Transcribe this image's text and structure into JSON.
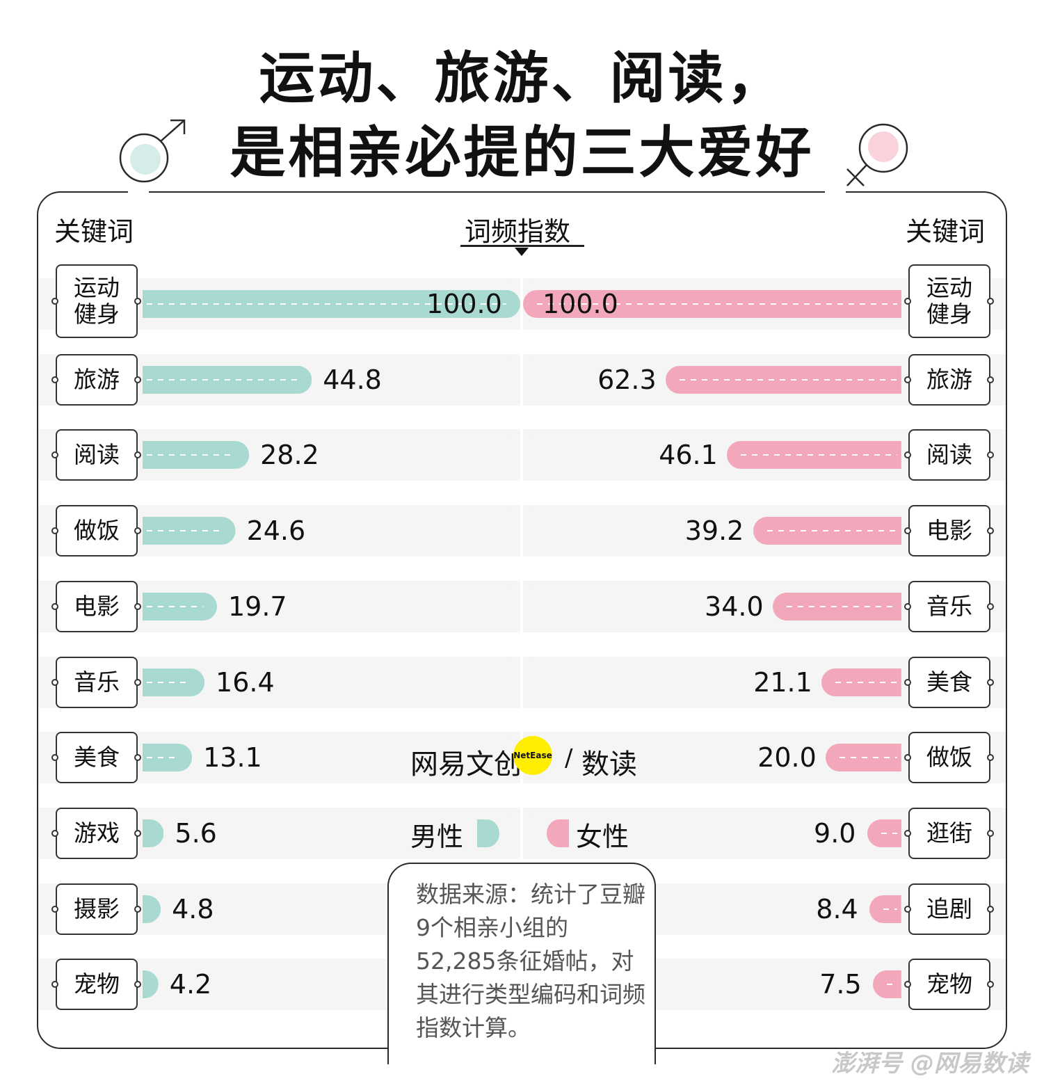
{
  "title_line1": "运动、旅游、阅读，",
  "title_line2": "是相亲必提的三大爱好",
  "header": {
    "left_col": "关键词",
    "center_col": "词频指数",
    "right_col": "关键词"
  },
  "legend": {
    "male": "男性",
    "female": "女性"
  },
  "brand": {
    "name": "网易文创",
    "badge": "NetEase",
    "slash": "/",
    "sub": "数读"
  },
  "note": "数据来源：统计了豆瓣9个相亲小组的52,285条征婚帖，对其进行类型编码和词频指数计算。",
  "watermark": "澎湃号 @网易数读",
  "colors": {
    "male": "#a8dad1",
    "female": "#f2a7bb",
    "male_symbol": "#d6ece8",
    "female_symbol": "#f9d2dc"
  },
  "chart_data": {
    "type": "bar",
    "title": "运动、旅游、阅读，是相亲必提的三大爱好",
    "value_label": "词频指数",
    "xlim": [
      0,
      100
    ],
    "series": [
      {
        "name": "男性",
        "categories": [
          "运动健身",
          "旅游",
          "阅读",
          "做饭",
          "电影",
          "音乐",
          "美食",
          "游戏",
          "摄影",
          "宠物"
        ],
        "values": [
          100.0,
          44.8,
          28.2,
          24.6,
          19.7,
          16.4,
          13.1,
          5.6,
          4.8,
          4.2
        ],
        "labels": [
          "100.0",
          "44.8",
          "28.2",
          "24.6",
          "19.7",
          "16.4",
          "13.1",
          "5.6",
          "4.8",
          "4.2"
        ]
      },
      {
        "name": "女性",
        "categories": [
          "运动健身",
          "旅游",
          "阅读",
          "电影",
          "音乐",
          "美食",
          "做饭",
          "逛街",
          "追剧",
          "宠物"
        ],
        "values": [
          100.0,
          62.3,
          46.1,
          39.2,
          34.0,
          21.1,
          20.0,
          9.0,
          8.4,
          7.5
        ],
        "labels": [
          "100.0",
          "62.3",
          "46.1",
          "39.2",
          "34.0",
          "21.1",
          "20.0",
          "9.0",
          "8.4",
          "7.5"
        ]
      }
    ]
  }
}
